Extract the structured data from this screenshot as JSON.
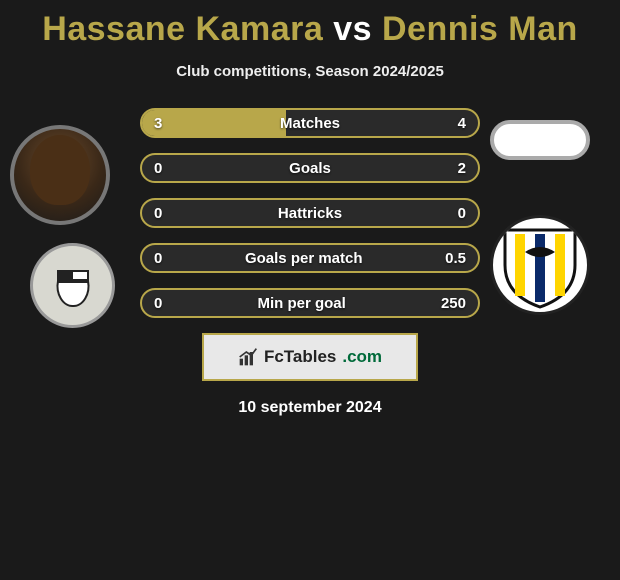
{
  "title": {
    "player1": "Hassane Kamara",
    "vs": "vs",
    "player2": "Dennis Man"
  },
  "subtitle": "Club competitions, Season 2024/2025",
  "colors": {
    "accent": "#b8a74a",
    "bg": "#1a1a1a",
    "bar_bg": "#2a2a2a",
    "text": "#ffffff"
  },
  "rows": [
    {
      "label": "Matches",
      "left": "3",
      "right": "4",
      "fill_left_pct": 43,
      "fill_right_pct": 0
    },
    {
      "label": "Goals",
      "left": "0",
      "right": "2",
      "fill_left_pct": 0,
      "fill_right_pct": 0
    },
    {
      "label": "Hattricks",
      "left": "0",
      "right": "0",
      "fill_left_pct": 0,
      "fill_right_pct": 0
    },
    {
      "label": "Goals per match",
      "left": "0",
      "right": "0.5",
      "fill_left_pct": 0,
      "fill_right_pct": 0
    },
    {
      "label": "Min per goal",
      "left": "0",
      "right": "250",
      "fill_left_pct": 0,
      "fill_right_pct": 0
    }
  ],
  "watermark": {
    "icon": "chart-icon",
    "text1": "FcTables",
    "text2": ".com"
  },
  "date": "10 september 2024",
  "avatars": {
    "player1_name": "hassane-kamara-avatar",
    "player2_name": "dennis-man-avatar",
    "crest1_name": "udinese-crest",
    "crest2_name": "parma-crest"
  }
}
